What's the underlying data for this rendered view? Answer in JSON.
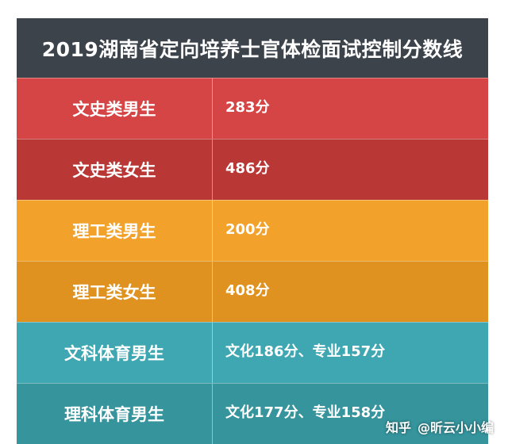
{
  "title": "2019湖南省定向培养士官体检面试控制分数线",
  "rows": [
    {
      "label": "文史类男生",
      "value": "283分",
      "color": "#d64545"
    },
    {
      "label": "文史类女生",
      "value": "486分",
      "color": "#b93835"
    },
    {
      "label": "理工类男生",
      "value": "200分",
      "color": "#f2a22a"
    },
    {
      "label": "理工类女生",
      "value": "408分",
      "color": "#df921f"
    },
    {
      "label": "文科体育男生",
      "value": "文化186分、专业157分",
      "color": "#3fa7b1"
    },
    {
      "label": "理科体育男生",
      "value": "文化177分、专业158分",
      "color": "#35949c"
    }
  ],
  "watermark": {
    "site": "知乎",
    "author": "@昕云小小编"
  }
}
